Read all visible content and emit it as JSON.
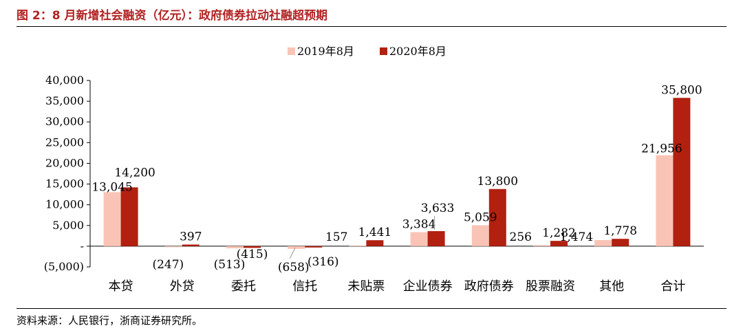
{
  "title": "图 2：8 月新增社会融资（亿元）：政府债券拉动社融超预期",
  "source": "资料来源：人民银行，浙商证券研究所。",
  "chart_data": {
    "type": "bar",
    "categories": [
      "本贷",
      "外贷",
      "委托",
      "信托",
      "未贴票",
      "企业债券",
      "政府债券",
      "股票融资",
      "其他",
      "合计"
    ],
    "series": [
      {
        "name": "2019年8月",
        "color": "#f9c4b6",
        "values": [
          13045,
          -247,
          -513,
          -658,
          157,
          3384,
          5059,
          256,
          1474,
          21956
        ],
        "labels": [
          "13,045",
          "(247)",
          "(513)",
          "(658)",
          "157",
          "3,384",
          "5,059",
          "256",
          "1,474",
          "21,956"
        ]
      },
      {
        "name": "2020年8月",
        "color": "#b22010",
        "values": [
          14200,
          397,
          -415,
          -316,
          1441,
          3633,
          13800,
          1282,
          1778,
          35800
        ],
        "labels": [
          "14,200",
          "397",
          "(415)",
          "(316)",
          "1,441",
          "3,633",
          "13,800",
          "1,282",
          "1,778",
          "35,800"
        ]
      }
    ],
    "yticks": [
      "40,000",
      "35,000",
      "30,000",
      "25,000",
      "20,000",
      "15,000",
      "10,000",
      "5,000",
      "-",
      "(5,000)"
    ],
    "ylim": [
      -5000,
      40000
    ],
    "legend_position": "top-center",
    "grid": false
  }
}
